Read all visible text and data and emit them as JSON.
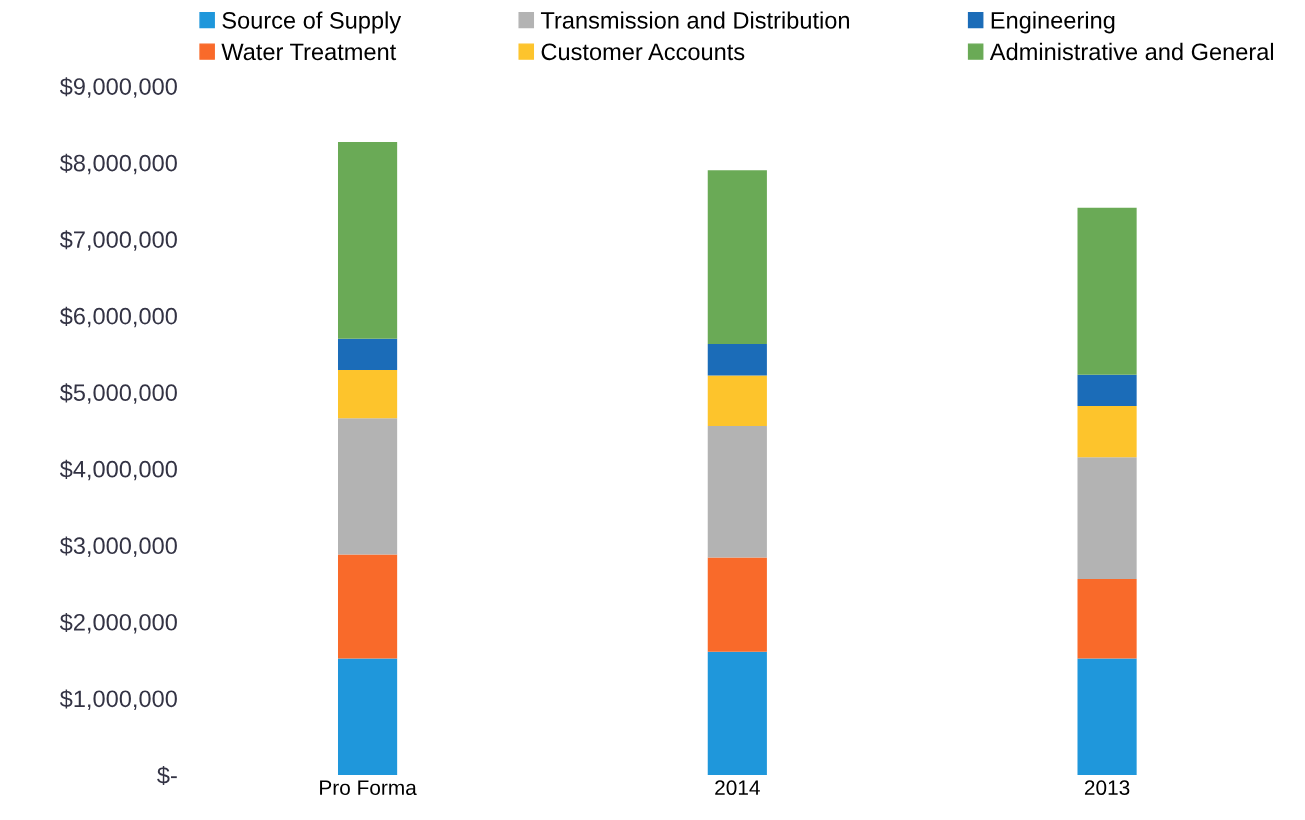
{
  "chart_data": {
    "type": "bar",
    "stacked": true,
    "categories": [
      "Pro Forma",
      "2014",
      "2013"
    ],
    "series": [
      {
        "name": "Source of Supply",
        "color": "#1f97db",
        "values": [
          1520000,
          1610000,
          1520000
        ]
      },
      {
        "name": "Water Treatment",
        "color": "#f96a2a",
        "values": [
          1360000,
          1230000,
          1040000
        ]
      },
      {
        "name": "Transmission and Distribution",
        "color": "#b3b3b3",
        "values": [
          1780000,
          1720000,
          1590000
        ]
      },
      {
        "name": "Customer Accounts",
        "color": "#fdc42c",
        "values": [
          630000,
          660000,
          670000
        ]
      },
      {
        "name": "Engineering",
        "color": "#1b6cb8",
        "values": [
          410000,
          410000,
          410000
        ]
      },
      {
        "name": "Administrative and General",
        "color": "#6aaa56",
        "values": [
          2570000,
          2270000,
          2180000
        ]
      }
    ],
    "ylim": [
      0,
      9000000
    ],
    "yticks": [
      {
        "value": 0,
        "label": "$-"
      },
      {
        "value": 1000000,
        "label": "$1,000,000"
      },
      {
        "value": 2000000,
        "label": "$2,000,000"
      },
      {
        "value": 3000000,
        "label": "$3,000,000"
      },
      {
        "value": 4000000,
        "label": "$4,000,000"
      },
      {
        "value": 5000000,
        "label": "$5,000,000"
      },
      {
        "value": 6000000,
        "label": "$6,000,000"
      },
      {
        "value": 7000000,
        "label": "$7,000,000"
      },
      {
        "value": 8000000,
        "label": "$8,000,000"
      },
      {
        "value": 9000000,
        "label": "$9,000,000"
      }
    ],
    "legend": "top",
    "grid": false
  }
}
